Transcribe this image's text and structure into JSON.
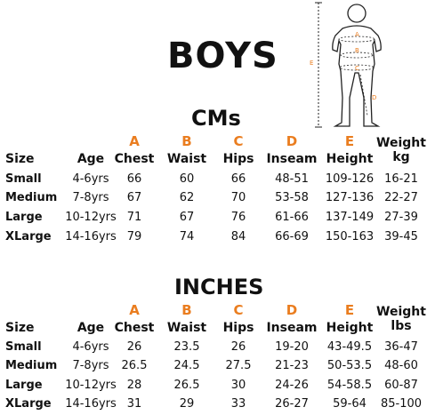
{
  "title": "BOYS",
  "figure": {
    "labels": [
      "A",
      "B",
      "C",
      "D",
      "E"
    ]
  },
  "letters": [
    "A",
    "B",
    "C",
    "D",
    "E"
  ],
  "headers": {
    "size": "Size",
    "age": "Age",
    "chest": "Chest",
    "waist": "Waist",
    "hips": "Hips",
    "inseam": "Inseam",
    "height": "Height",
    "weight": "Weight",
    "unit_cm": "kg",
    "unit_in": "lbs"
  },
  "cm": {
    "title": "CMs",
    "rows": [
      {
        "size": "Small",
        "age": "4-6yrs",
        "chest": "66",
        "waist": "60",
        "hips": "66",
        "inseam": "48-51",
        "height": "109-126",
        "weight": "16-21"
      },
      {
        "size": "Medium",
        "age": "7-8yrs",
        "chest": "67",
        "waist": "62",
        "hips": "70",
        "inseam": "53-58",
        "height": "127-136",
        "weight": "22-27"
      },
      {
        "size": "Large",
        "age": "10-12yrs",
        "chest": "71",
        "waist": "67",
        "hips": "76",
        "inseam": "61-66",
        "height": "137-149",
        "weight": "27-39"
      },
      {
        "size": "XLarge",
        "age": "14-16yrs",
        "chest": "79",
        "waist": "74",
        "hips": "84",
        "inseam": "66-69",
        "height": "150-163",
        "weight": "39-45"
      }
    ]
  },
  "inches": {
    "title": "INCHES",
    "rows": [
      {
        "size": "Small",
        "age": "4-6yrs",
        "chest": "26",
        "waist": "23.5",
        "hips": "26",
        "inseam": "19-20",
        "height": "43-49.5",
        "weight": "36-47"
      },
      {
        "size": "Medium",
        "age": "7-8yrs",
        "chest": "26.5",
        "waist": "24.5",
        "hips": "27.5",
        "inseam": "21-23",
        "height": "50-53.5",
        "weight": "48-60"
      },
      {
        "size": "Large",
        "age": "10-12yrs",
        "chest": "28",
        "waist": "26.5",
        "hips": "30",
        "inseam": "24-26",
        "height": "54-58.5",
        "weight": "60-87"
      },
      {
        "size": "XLarge",
        "age": "14-16yrs",
        "chest": "31",
        "waist": "29",
        "hips": "33",
        "inseam": "26-27",
        "height": "59-64",
        "weight": "85-100"
      }
    ]
  },
  "colors": {
    "accent": "#ea7d1f",
    "text": "#111111"
  }
}
